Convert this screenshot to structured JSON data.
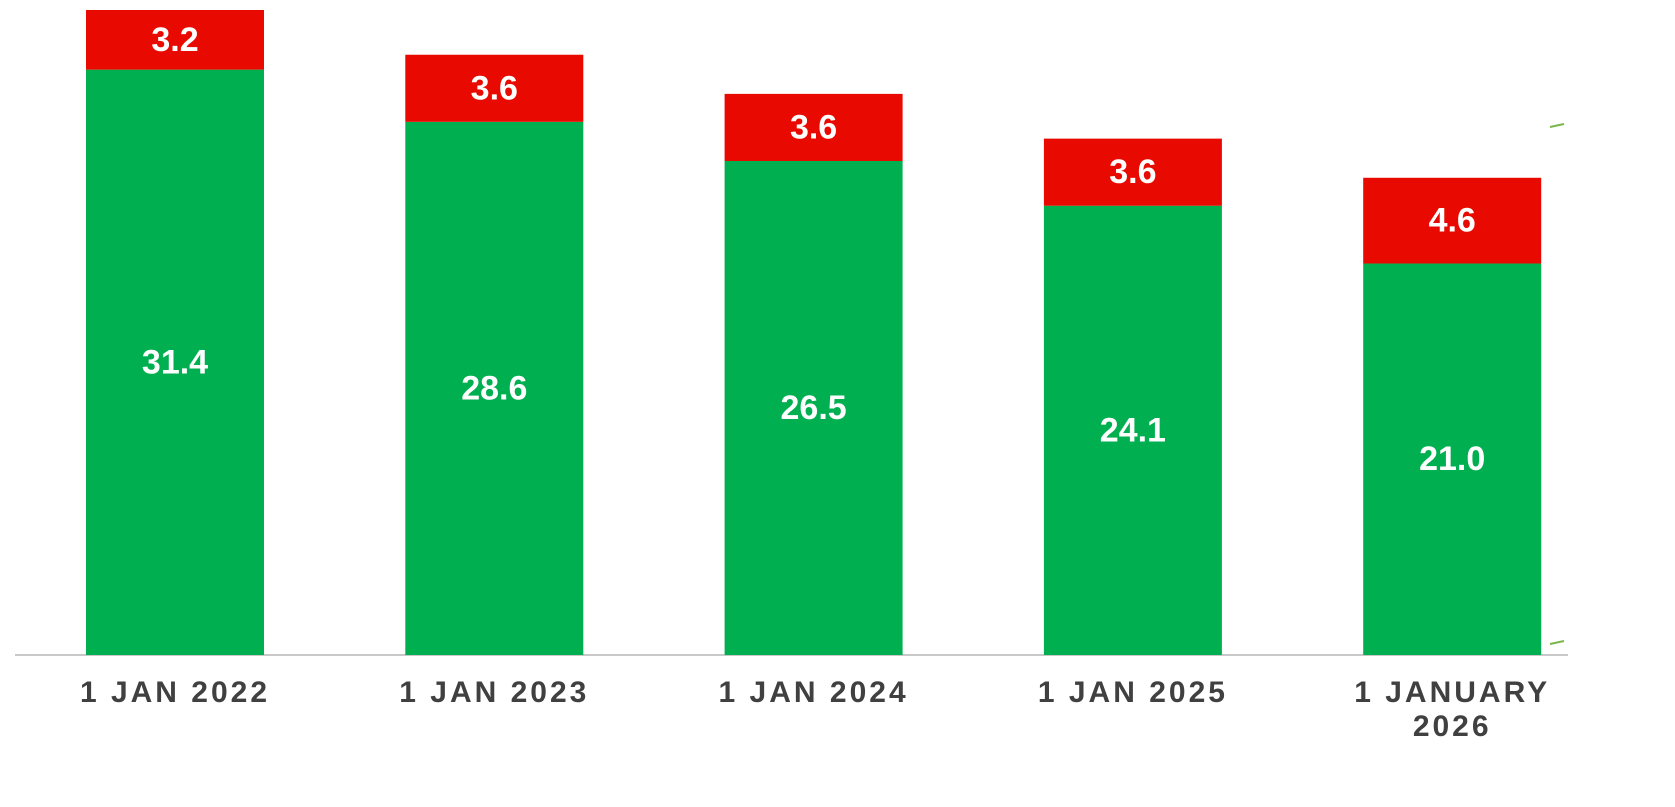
{
  "chart_data": {
    "type": "stacked_bar",
    "categories": [
      "1 JAN 2022",
      "1 JAN 2023",
      "1 JAN 2024",
      "1 JAN 2025",
      "1 JANUARY 2026"
    ],
    "series": [
      {
        "color": "#00b050",
        "values": [
          31.4,
          28.6,
          26.5,
          24.1,
          21.0
        ],
        "value_labels": [
          "31.4",
          "28.6",
          "26.5",
          "24.1",
          "21.0"
        ]
      },
      {
        "color": "#e80a00",
        "values": [
          3.2,
          3.6,
          3.6,
          3.6,
          4.6
        ]
      }
    ]
  }
}
